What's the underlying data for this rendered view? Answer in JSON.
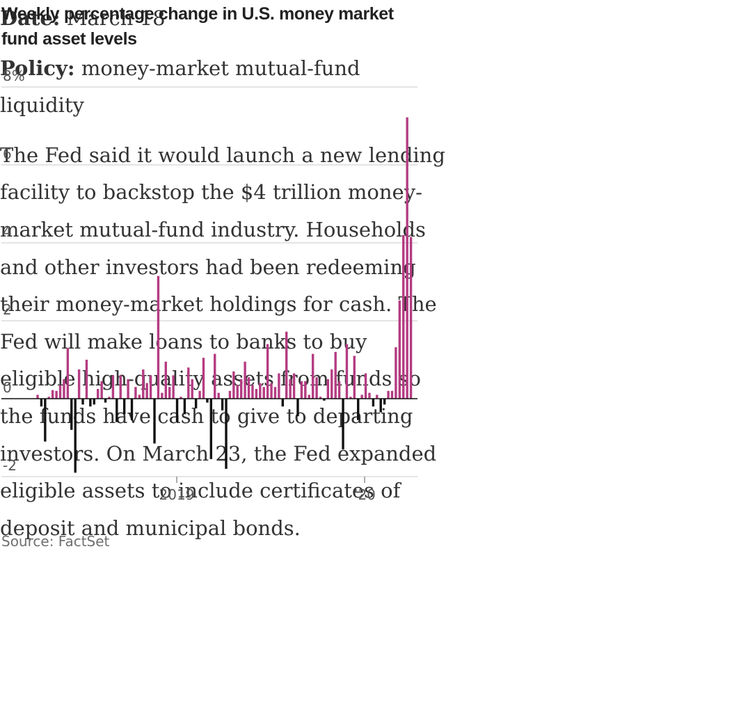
{
  "chart_data": {
    "type": "bar",
    "title": "Weekly percentage change in U.S. money market fund asset levels",
    "source": "Source: FactSet",
    "y_ticks": [
      "8%",
      "6",
      "4",
      "2",
      "0",
      "-2"
    ],
    "x_ticks": [
      "2019",
      "’20"
    ],
    "ylim": [
      -2,
      8
    ],
    "grid": true,
    "unit": "%",
    "colors": {
      "positive": "#b43c82",
      "negative": "#111111"
    },
    "series": [
      {
        "values": [
          0.1,
          -0.2,
          -1.1,
          0.05,
          0.22,
          0.2,
          0.35,
          0.5,
          1.3,
          -0.8,
          -1.9,
          0.75,
          -0.15,
          1.0,
          -0.2,
          -0.15,
          0.25,
          0.45,
          -0.1,
          0.05,
          0.6,
          -0.6,
          0.6,
          -0.4,
          0.5,
          -0.55,
          0.3,
          0.1,
          0.75,
          0.4,
          0.6,
          -1.15,
          3.15,
          0.15,
          0.95,
          0.3,
          0.6,
          -0.6,
          0.05,
          -0.4,
          0.8,
          0.5,
          -0.25,
          0.2,
          1.05,
          -0.1,
          -1.55,
          1.15,
          0.15,
          -0.3,
          -1.8,
          0.2,
          0.7,
          0.35,
          0.5,
          0.95,
          0.55,
          0.35,
          0.25,
          0.4,
          0.3,
          1.4,
          0.4,
          0.3,
          0.65,
          -0.2,
          1.72,
          0.5,
          0.65,
          -0.45,
          0.45,
          0.45,
          0.1,
          1.15,
          0.55,
          0.05,
          -0.05,
          0.5,
          0.75,
          1.2,
          0.45,
          -1.3,
          1.4,
          0.05,
          1.1,
          -0.55,
          0.1,
          0.65,
          0.15,
          -0.2,
          0.1,
          -0.35,
          -0.15,
          0.2,
          0.2,
          1.32,
          2.52,
          4.2,
          7.22,
          4.15
        ]
      }
    ]
  },
  "article": {
    "date_label": "Date:",
    "date_value": "March 18",
    "policy_label": "Policy:",
    "policy_value": "money-market mutual-fund liquidity",
    "body": "The Fed said it would launch a new lending facility to backstop the $4 trillion money-market mutual-fund industry. Households and other investors had been redeeming their money-market holdings for cash. The Fed will make loans to banks to buy eligible high-quality assets from funds so the funds have cash to give to departing investors. On March 23, the Fed expanded eligible assets to include certificates of deposit and municipal bonds."
  }
}
